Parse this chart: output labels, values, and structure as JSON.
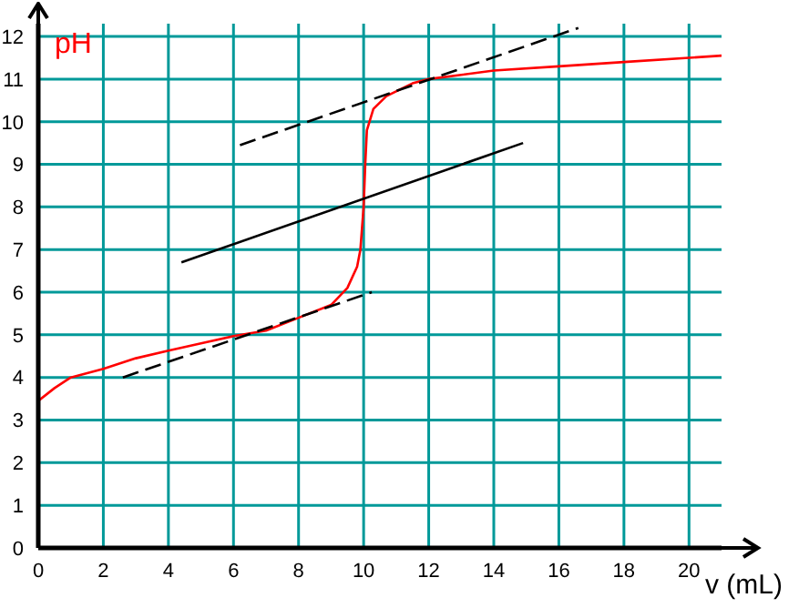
{
  "chart_data": {
    "type": "line",
    "xlabel": "v (mL)",
    "ylabel": "pH",
    "xlim": [
      0,
      21
    ],
    "ylim": [
      0,
      12.3
    ],
    "xticks": [
      0,
      2,
      4,
      6,
      8,
      10,
      12,
      14,
      16,
      18,
      20
    ],
    "yticks": [
      0,
      1,
      2,
      3,
      4,
      5,
      6,
      7,
      8,
      9,
      10,
      11,
      12
    ],
    "grid": true,
    "marker": "none",
    "series": [
      {
        "color": "#ff0000",
        "line_style": "solid",
        "x": [
          0,
          0.5,
          1,
          2,
          3,
          4,
          5,
          6,
          7,
          8,
          9,
          9.5,
          9.8,
          9.9,
          10,
          10.05,
          10.1,
          10.3,
          10.7,
          11.5,
          12,
          13,
          14,
          16,
          18,
          20,
          21
        ],
        "values": [
          3.45,
          3.75,
          4.0,
          4.2,
          4.45,
          4.63,
          4.8,
          4.97,
          5.1,
          5.4,
          5.7,
          6.1,
          6.6,
          7.0,
          8.0,
          9.0,
          9.8,
          10.3,
          10.6,
          10.9,
          11.0,
          11.1,
          11.2,
          11.3,
          11.4,
          11.5,
          11.55
        ]
      },
      {
        "color": "#000000",
        "line_style": "dashed",
        "x": [
          2.6,
          10.25
        ],
        "values": [
          4.0,
          6.0
        ]
      },
      {
        "color": "#000000",
        "line_style": "solid",
        "x": [
          4.4,
          14.9
        ],
        "values": [
          6.7,
          9.5
        ]
      },
      {
        "color": "#000000",
        "line_style": "dashed",
        "x": [
          6.2,
          16.6
        ],
        "values": [
          9.45,
          12.2
        ]
      }
    ]
  }
}
